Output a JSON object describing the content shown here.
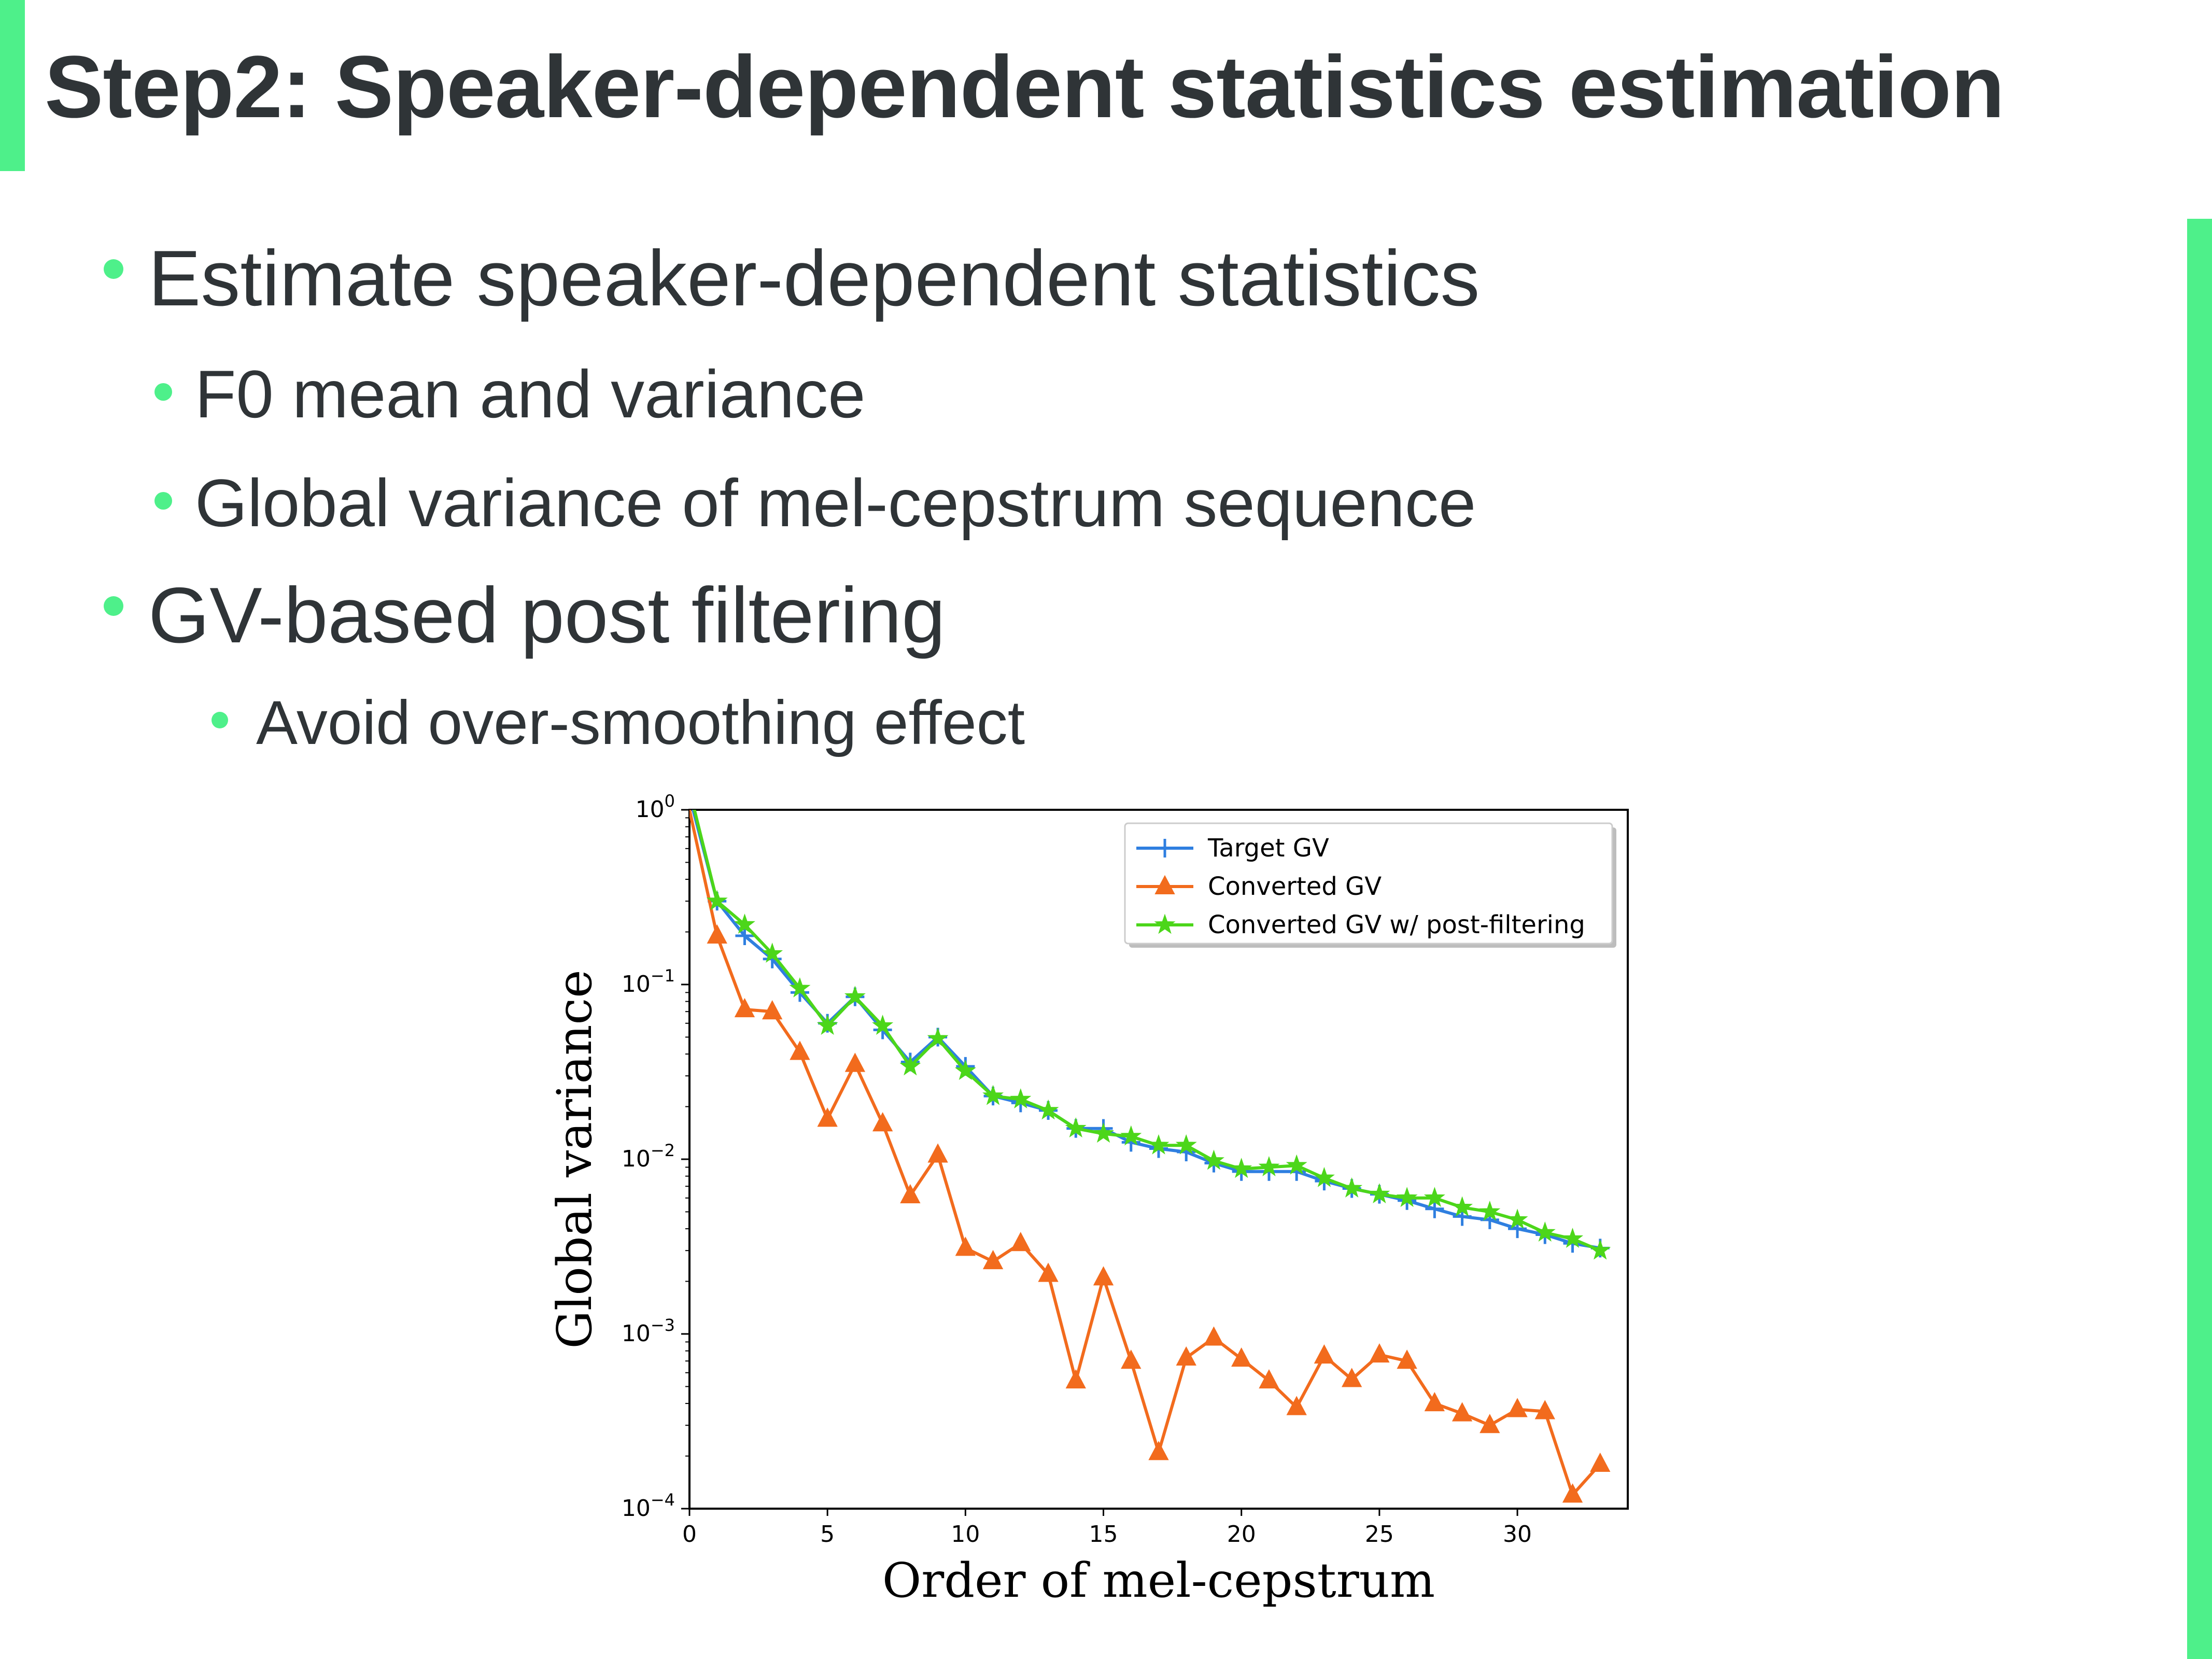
{
  "slide": {
    "title": "Step2: Speaker-dependent statistics estimation",
    "accent_color": "#4ef08a",
    "text_color": "#2f3437",
    "bullets": [
      {
        "text": "Estimate speaker-dependent statistics"
      },
      {
        "text": "F0 mean and variance"
      },
      {
        "text": "Global variance of mel-cepstrum sequence"
      },
      {
        "text": "GV-based post filtering"
      },
      {
        "text": "Avoid over-smoothing effect"
      }
    ]
  },
  "chart_data": {
    "type": "line",
    "xlabel": "Order of mel-cepstrum",
    "ylabel": "Global variance",
    "xlim": [
      0,
      34
    ],
    "ylim": [
      0.0001,
      1
    ],
    "yscale": "log",
    "xticks": [
      "0",
      "5",
      "10",
      "15",
      "20",
      "25",
      "30"
    ],
    "yticks": [
      {
        "base": "10",
        "exp": "0"
      },
      {
        "base": "10",
        "exp": "−1"
      },
      {
        "base": "10",
        "exp": "−2"
      },
      {
        "base": "10",
        "exp": "−3"
      },
      {
        "base": "10",
        "exp": "−4"
      }
    ],
    "legend_position": "top-right",
    "grid": false,
    "x": [
      0,
      1,
      2,
      3,
      4,
      5,
      6,
      7,
      8,
      9,
      10,
      11,
      12,
      13,
      14,
      15,
      16,
      17,
      18,
      19,
      20,
      21,
      22,
      23,
      24,
      25,
      26,
      27,
      28,
      29,
      30,
      31,
      32,
      33
    ],
    "series": [
      {
        "name": "Target GV",
        "color": "#2f7fe0",
        "marker": "plus",
        "values": [
          1.2,
          0.3,
          0.19,
          0.14,
          0.09,
          0.06,
          0.085,
          0.055,
          0.036,
          0.05,
          0.034,
          0.023,
          0.021,
          0.019,
          0.015,
          0.015,
          0.0125,
          0.0115,
          0.011,
          0.0095,
          0.0085,
          0.0085,
          0.0085,
          0.0075,
          0.0068,
          0.0063,
          0.0058,
          0.0052,
          0.0047,
          0.0045,
          0.004,
          0.0037,
          0.0033,
          0.0031
        ]
      },
      {
        "name": "Converted GV",
        "color": "#f26b1d",
        "marker": "triangle",
        "values": [
          1.0,
          0.19,
          0.072,
          0.07,
          0.041,
          0.017,
          0.035,
          0.016,
          0.0062,
          0.0106,
          0.0031,
          0.0026,
          0.0033,
          0.0022,
          0.00054,
          0.0021,
          0.0007,
          0.00021,
          0.00073,
          0.00095,
          0.00072,
          0.00054,
          0.00038,
          0.00075,
          0.00055,
          0.00076,
          0.0007,
          0.0004,
          0.00035,
          0.0003,
          0.00037,
          0.00036,
          0.00012,
          0.00018
        ]
      },
      {
        "name": "Converted GV w/ post-filtering",
        "color": "#4cd61a",
        "marker": "star",
        "values": [
          1.3,
          0.3,
          0.22,
          0.15,
          0.095,
          0.058,
          0.085,
          0.058,
          0.034,
          0.049,
          0.032,
          0.023,
          0.022,
          0.019,
          0.015,
          0.014,
          0.0135,
          0.012,
          0.012,
          0.0098,
          0.0088,
          0.009,
          0.0092,
          0.0078,
          0.0068,
          0.0063,
          0.006,
          0.006,
          0.0053,
          0.005,
          0.0045,
          0.0038,
          0.0035,
          0.003
        ]
      }
    ]
  }
}
